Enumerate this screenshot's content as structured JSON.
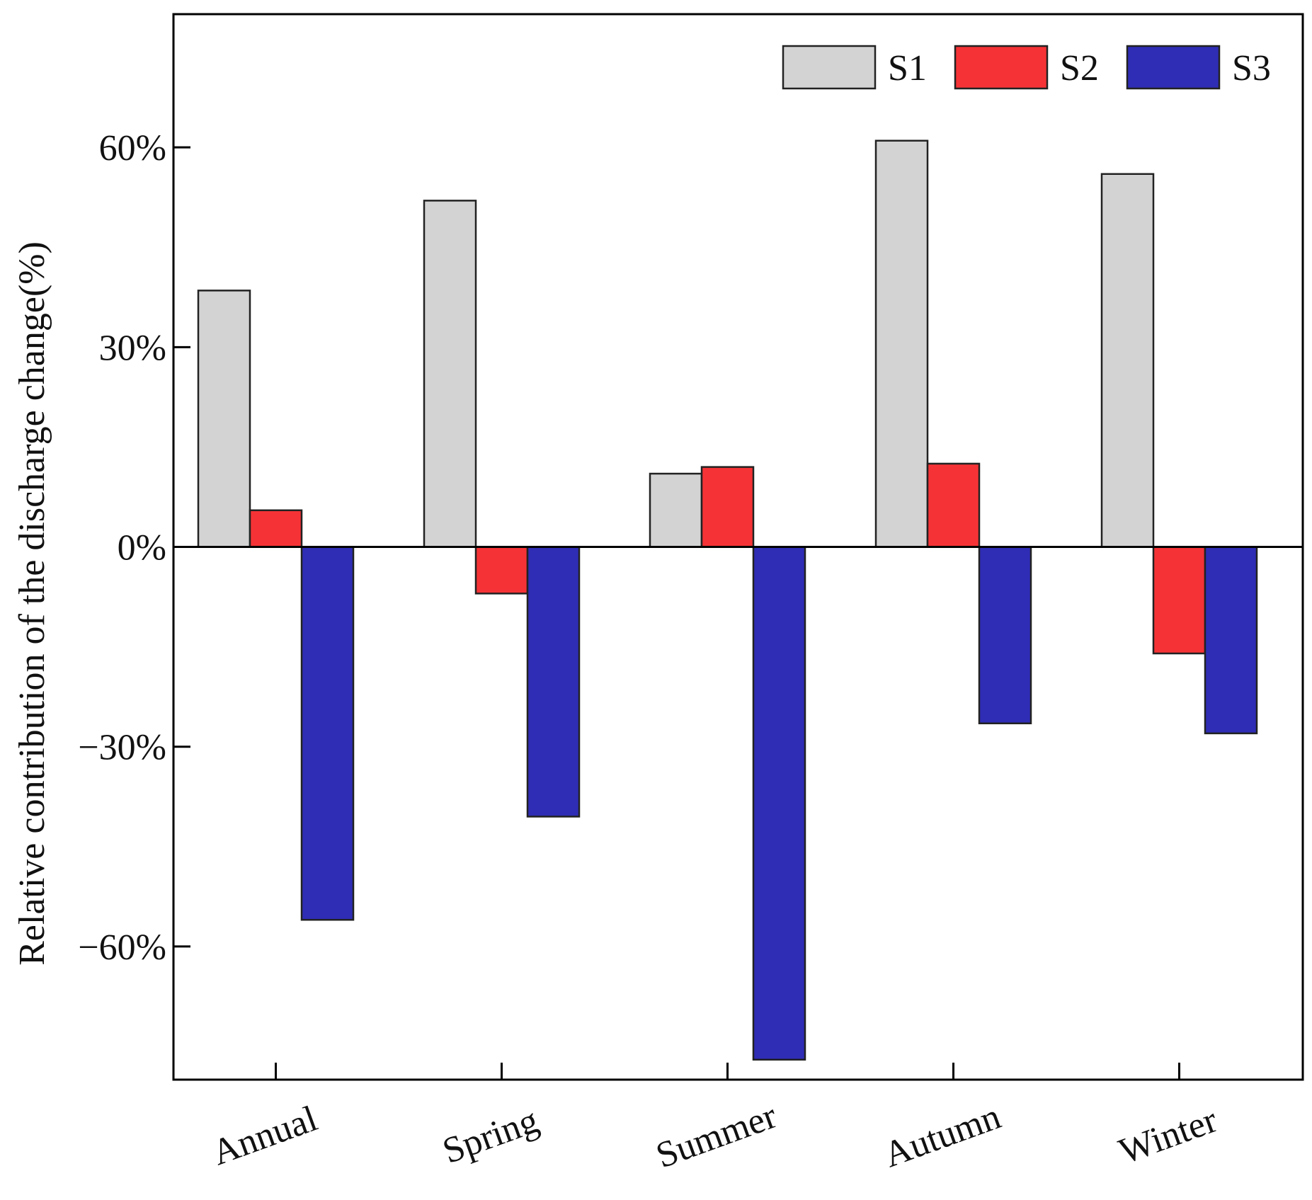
{
  "chart_data": {
    "type": "bar",
    "title": "",
    "xlabel": "",
    "ylabel": "Relative contribution of the discharge change(%)",
    "ylim": [
      -80,
      80
    ],
    "yticks": [
      -60,
      -30,
      0,
      30,
      60
    ],
    "ytick_labels": [
      "−60%",
      "−30%",
      "0%",
      "30%",
      "60%"
    ],
    "categories": [
      "Annual",
      "Spring",
      "Summer",
      "Autumn",
      "Winter"
    ],
    "series": [
      {
        "name": "S1",
        "color": "#d3d3d3",
        "values": [
          38.5,
          52,
          11,
          61,
          56
        ]
      },
      {
        "name": "S2",
        "color": "#f53336",
        "values": [
          5.5,
          -7,
          12,
          12.5,
          -16
        ]
      },
      {
        "name": "S3",
        "color": "#2f2db5",
        "values": [
          -56,
          -40.5,
          -77,
          -26.5,
          -28
        ]
      }
    ],
    "grid": false,
    "legend": "top-right"
  }
}
